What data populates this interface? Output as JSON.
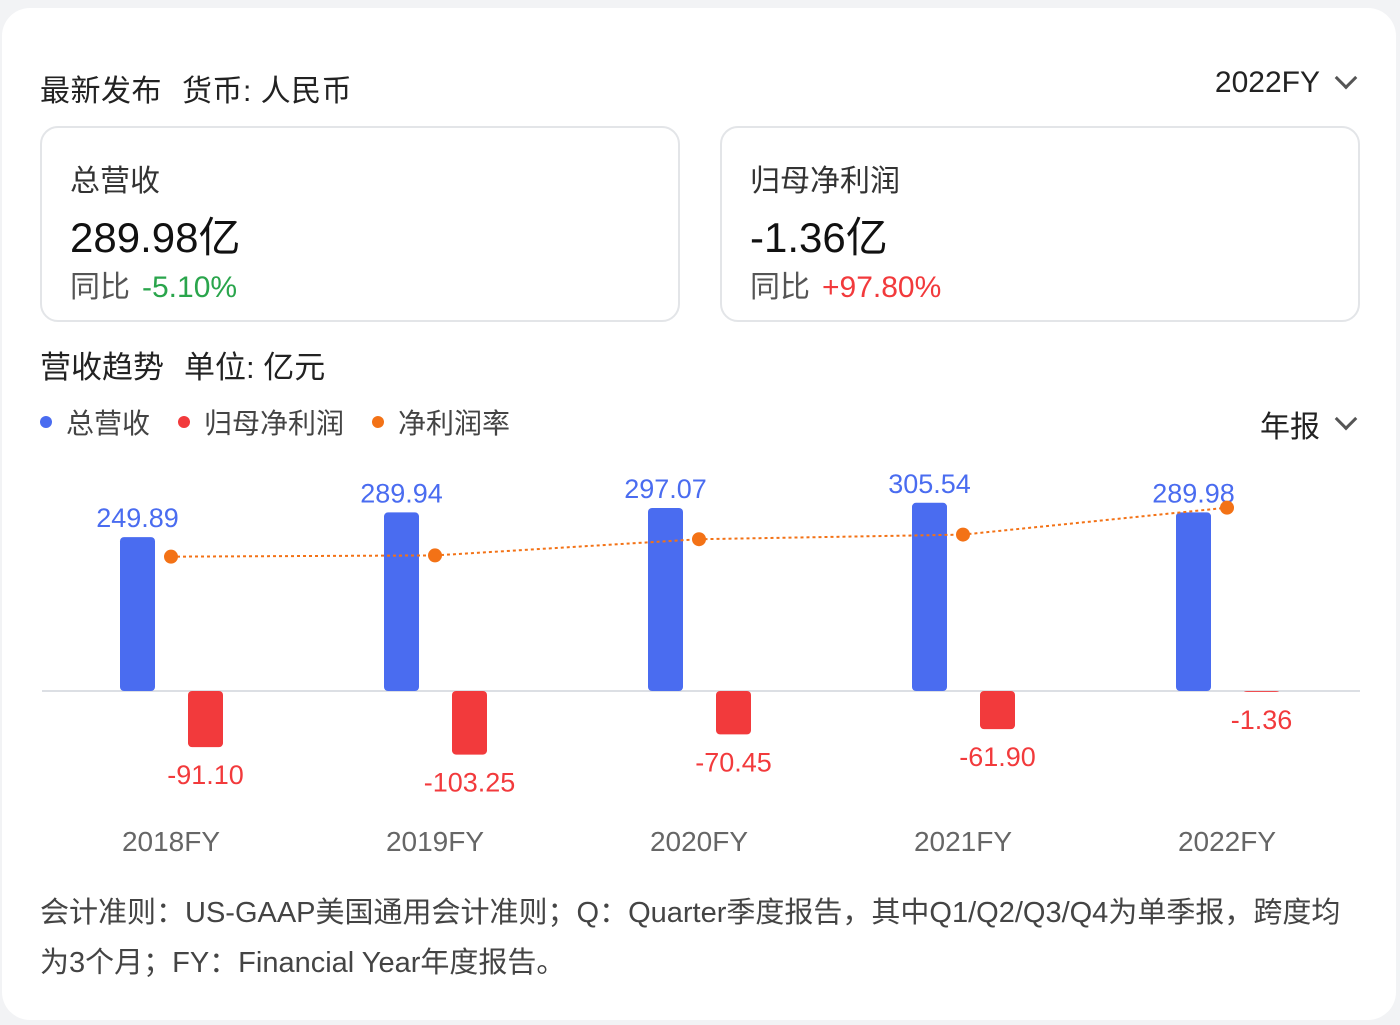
{
  "header": {
    "title": "最新发布",
    "currency": "货币: 人民币",
    "period_select": "2022FY"
  },
  "metrics": [
    {
      "label": "总营收",
      "value": "289.98亿",
      "yoy_label": "同比",
      "yoy": "-5.10%"
    },
    {
      "label": "归母净利润",
      "value": "-1.36亿",
      "yoy_label": "同比",
      "yoy": "+97.80%"
    }
  ],
  "trend": {
    "title": "营收趋势",
    "unit": "单位: 亿元",
    "period_select": "年报"
  },
  "legend": [
    {
      "name": "总营收",
      "color": "#4a6cf0"
    },
    {
      "name": "归母净利润",
      "color": "#f23a3c"
    },
    {
      "name": "净利润率",
      "color": "#f37216"
    }
  ],
  "chart_data": {
    "type": "bar",
    "categories": [
      "2018FY",
      "2019FY",
      "2020FY",
      "2021FY",
      "2022FY"
    ],
    "series": [
      {
        "name": "总营收",
        "type": "bar",
        "color": "#4a6cf0",
        "values": [
          249.89,
          289.94,
          297.07,
          305.54,
          289.98
        ],
        "labels": [
          "249.89",
          "289.94",
          "297.07",
          "305.54",
          "289.98"
        ]
      },
      {
        "name": "归母净利润",
        "type": "bar",
        "color": "#f23a3c",
        "values": [
          -91.1,
          -103.25,
          -70.45,
          -61.9,
          -1.36
        ],
        "labels": [
          "-91.10",
          "-103.25",
          "-70.45",
          "-61.90",
          "-1.36"
        ]
      },
      {
        "name": "净利润率",
        "type": "line",
        "color": "#f37216",
        "values": [
          -36.5,
          -35.6,
          -23.7,
          -20.3,
          -0.5
        ]
      }
    ],
    "ylim": [
      -110,
      320
    ]
  },
  "footnote": "会计准则：US-GAAP美国通用会计准则；Q：Quarter季度报告，其中Q1/Q2/Q3/Q4为单季报，跨度均为3个月；FY：Financial Year年度报告。"
}
